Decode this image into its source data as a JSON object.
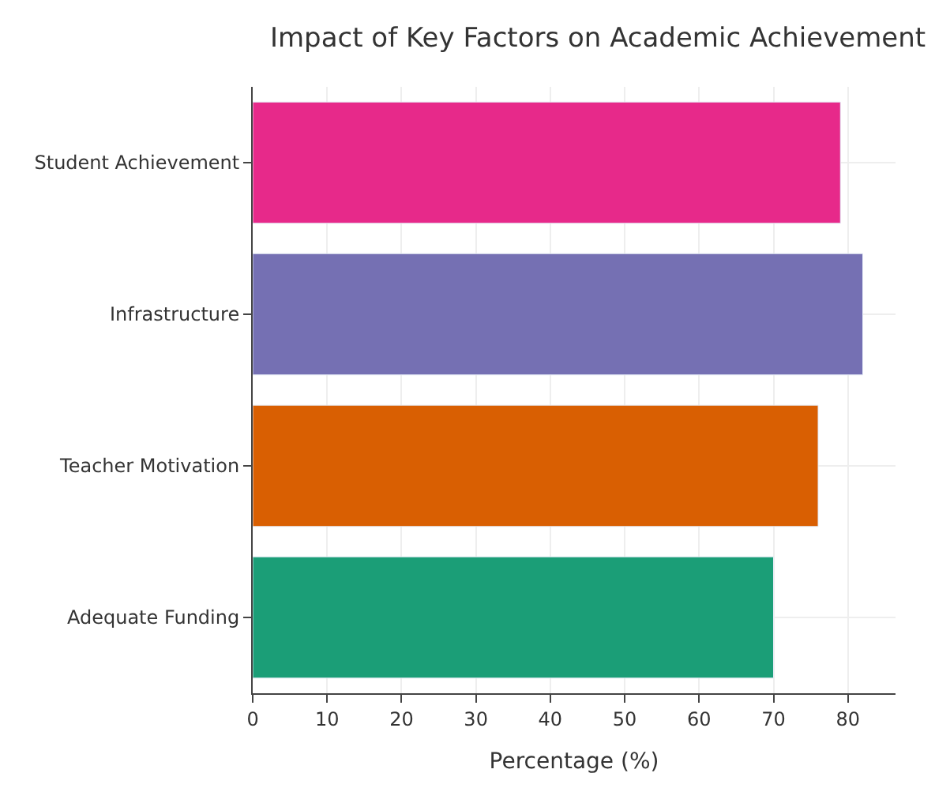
{
  "chart_data": {
    "type": "bar",
    "orientation": "horizontal",
    "title": "Impact of Key Factors on Academic Achievement",
    "xlabel": "Percentage (%)",
    "categories": [
      "Student Achievement",
      "Infrastructure",
      "Teacher Motivation",
      "Adequate Funding"
    ],
    "values": [
      79,
      82,
      76,
      70
    ],
    "colors": [
      "#e7298a",
      "#7570b3",
      "#d95f02",
      "#1b9e77"
    ],
    "xlim": [
      0,
      86.4
    ],
    "xticks": [
      0,
      10,
      20,
      30,
      40,
      50,
      60,
      70,
      80
    ],
    "grid": true
  }
}
